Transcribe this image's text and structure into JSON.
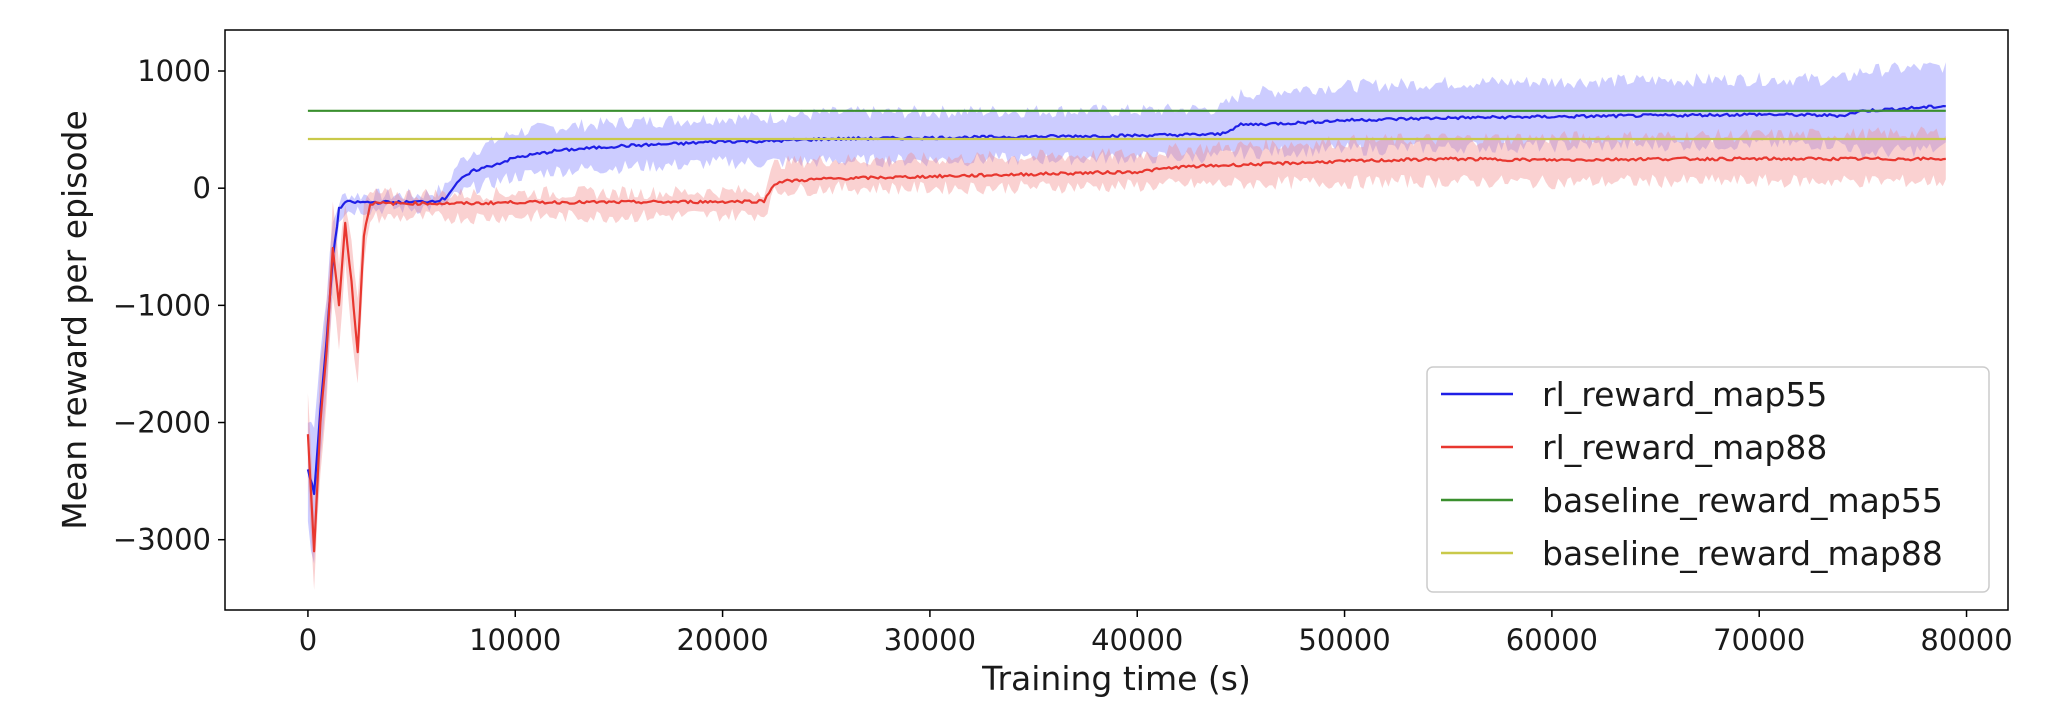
{
  "chart_data": {
    "type": "line",
    "title": "",
    "xlabel": "Training time (s)",
    "ylabel": "Mean reward per episode",
    "xlim": [
      -4000,
      82000
    ],
    "ylim": [
      -3600,
      1350
    ],
    "xticks": [
      0,
      10000,
      20000,
      30000,
      40000,
      50000,
      60000,
      70000,
      80000
    ],
    "xtick_labels": [
      "0",
      "10000",
      "20000",
      "30000",
      "40000",
      "50000",
      "60000",
      "70000",
      "80000"
    ],
    "yticks": [
      1000,
      0,
      -1000,
      -2000,
      -3000
    ],
    "ytick_labels": [
      "1000",
      "0",
      "−1000",
      "−2000",
      "−3000"
    ],
    "grid": false,
    "legend_position": "lower-right",
    "series": [
      {
        "name": "rl_reward_map55",
        "color": "#1f1fe6",
        "band_color": "#8080ff",
        "x": [
          0,
          300,
          600,
          900,
          1200,
          1500,
          1800,
          2400,
          3000,
          4000,
          5000,
          6000,
          6600,
          7200,
          8000,
          9000,
          10000,
          12000,
          15000,
          18000,
          20000,
          22000,
          25000,
          30000,
          35000,
          40000,
          44000,
          45000,
          48000,
          50000,
          55000,
          60000,
          65000,
          70000,
          74000,
          75000,
          77000,
          79000
        ],
        "y": [
          -2400,
          -2600,
          -1900,
          -1300,
          -600,
          -180,
          -120,
          -120,
          -120,
          -120,
          -120,
          -110,
          -90,
          50,
          150,
          200,
          260,
          320,
          360,
          380,
          400,
          400,
          420,
          430,
          440,
          450,
          460,
          540,
          560,
          580,
          600,
          610,
          620,
          630,
          620,
          660,
          680,
          700
        ],
        "lower": [
          -2900,
          -3200,
          -2300,
          -1700,
          -800,
          -250,
          -200,
          -180,
          -180,
          -170,
          -170,
          -160,
          -140,
          -60,
          0,
          50,
          100,
          150,
          180,
          200,
          220,
          220,
          230,
          240,
          250,
          260,
          270,
          300,
          320,
          330,
          350,
          360,
          370,
          380,
          380,
          300,
          320,
          340
        ],
        "upper": [
          -2000,
          -2000,
          -1400,
          -900,
          -300,
          -120,
          -60,
          -60,
          -60,
          -60,
          -60,
          -40,
          0,
          200,
          320,
          400,
          480,
          520,
          560,
          580,
          600,
          600,
          640,
          650,
          660,
          660,
          680,
          800,
          850,
          870,
          900,
          910,
          920,
          930,
          930,
          1000,
          1020,
          1040
        ]
      },
      {
        "name": "rl_reward_map88",
        "color": "#e8372f",
        "band_color": "#f28c8c",
        "x": [
          0,
          300,
          600,
          900,
          1200,
          1500,
          1800,
          2100,
          2400,
          2700,
          3000,
          4000,
          6000,
          8000,
          10000,
          15000,
          20000,
          22000,
          22500,
          23000,
          25000,
          30000,
          35000,
          40000,
          42000,
          45000,
          50000,
          55000,
          60000,
          65000,
          70000,
          75000,
          79000
        ],
        "y": [
          -2100,
          -3100,
          -2000,
          -1400,
          -500,
          -1000,
          -300,
          -800,
          -1400,
          -400,
          -130,
          -130,
          -130,
          -130,
          -120,
          -120,
          -115,
          -110,
          40,
          60,
          80,
          100,
          120,
          140,
          180,
          200,
          230,
          250,
          240,
          250,
          250,
          250,
          250
        ],
        "lower": [
          -2500,
          -3400,
          -2400,
          -1800,
          -900,
          -1400,
          -600,
          -1200,
          -1700,
          -700,
          -250,
          -250,
          -250,
          -250,
          -240,
          -240,
          -230,
          -220,
          -40,
          -20,
          0,
          0,
          10,
          20,
          30,
          40,
          50,
          60,
          50,
          60,
          60,
          60,
          60
        ],
        "upper": [
          -1700,
          -2800,
          -1500,
          -1000,
          -150,
          -600,
          -100,
          -400,
          -1000,
          -150,
          -50,
          -50,
          -50,
          -50,
          -40,
          -40,
          -30,
          -20,
          200,
          220,
          240,
          250,
          270,
          290,
          330,
          360,
          400,
          420,
          430,
          440,
          450,
          460,
          470
        ]
      },
      {
        "name": "baseline_reward_map55",
        "color": "#3a8f2e",
        "x": [
          0,
          79000
        ],
        "y": [
          660,
          660
        ]
      },
      {
        "name": "baseline_reward_map88",
        "color": "#c9c94a",
        "x": [
          0,
          79000
        ],
        "y": [
          420,
          420
        ]
      }
    ]
  }
}
